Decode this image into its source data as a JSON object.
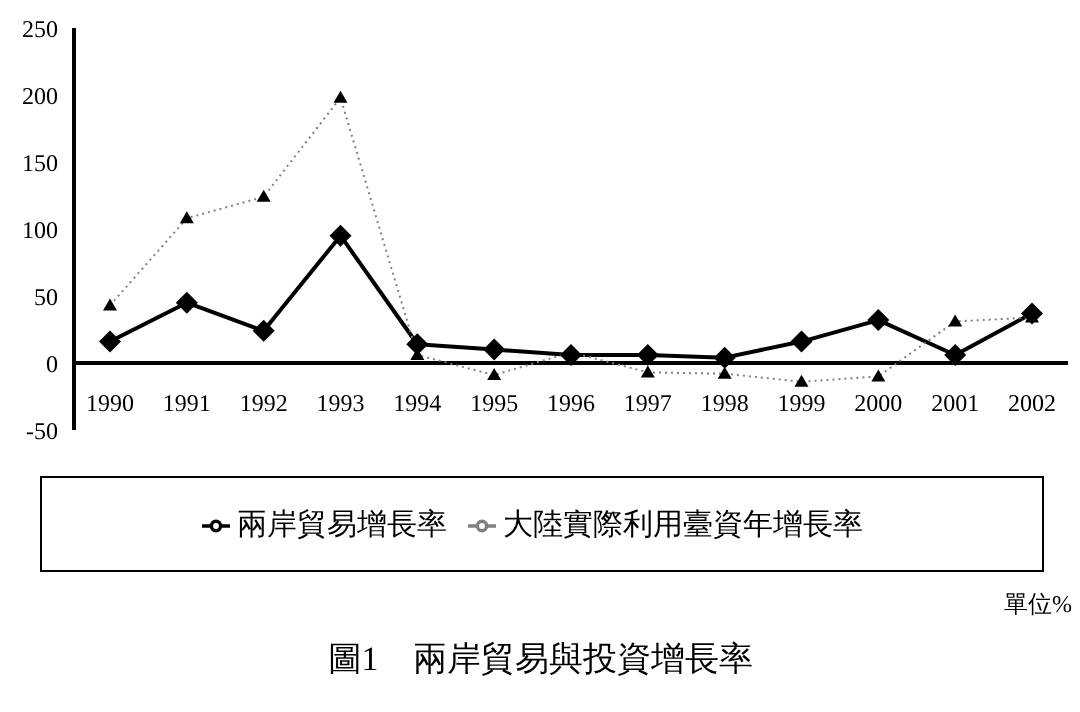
{
  "chart_data": {
    "type": "line",
    "title": "圖1　兩岸貿易與投資增長率",
    "annotations": [
      "單位%"
    ],
    "categories": [
      "1990",
      "1991",
      "1992",
      "1993",
      "1994",
      "1995",
      "1996",
      "1997",
      "1998",
      "1999",
      "2000",
      "2001",
      "2002"
    ],
    "series": [
      {
        "name": "兩岸貿易增長率",
        "color": "#000000",
        "marker": "diamond",
        "line_style": "solid",
        "values": [
          16,
          45,
          24,
          95,
          14,
          10,
          6,
          6,
          4,
          16,
          32,
          6,
          37
        ]
      },
      {
        "name": "大陸實際利用臺資年增長率",
        "color": "#808080",
        "marker": "triangle",
        "line_style": "dotted",
        "values": [
          43,
          108,
          124,
          198,
          6,
          -9,
          8,
          -7,
          -8,
          -14,
          -10,
          31,
          34
        ]
      }
    ],
    "ylim": [
      -50,
      250
    ],
    "yticks": [
      -50,
      0,
      50,
      100,
      150,
      200,
      250
    ],
    "grid": false,
    "legend": "bottom"
  }
}
